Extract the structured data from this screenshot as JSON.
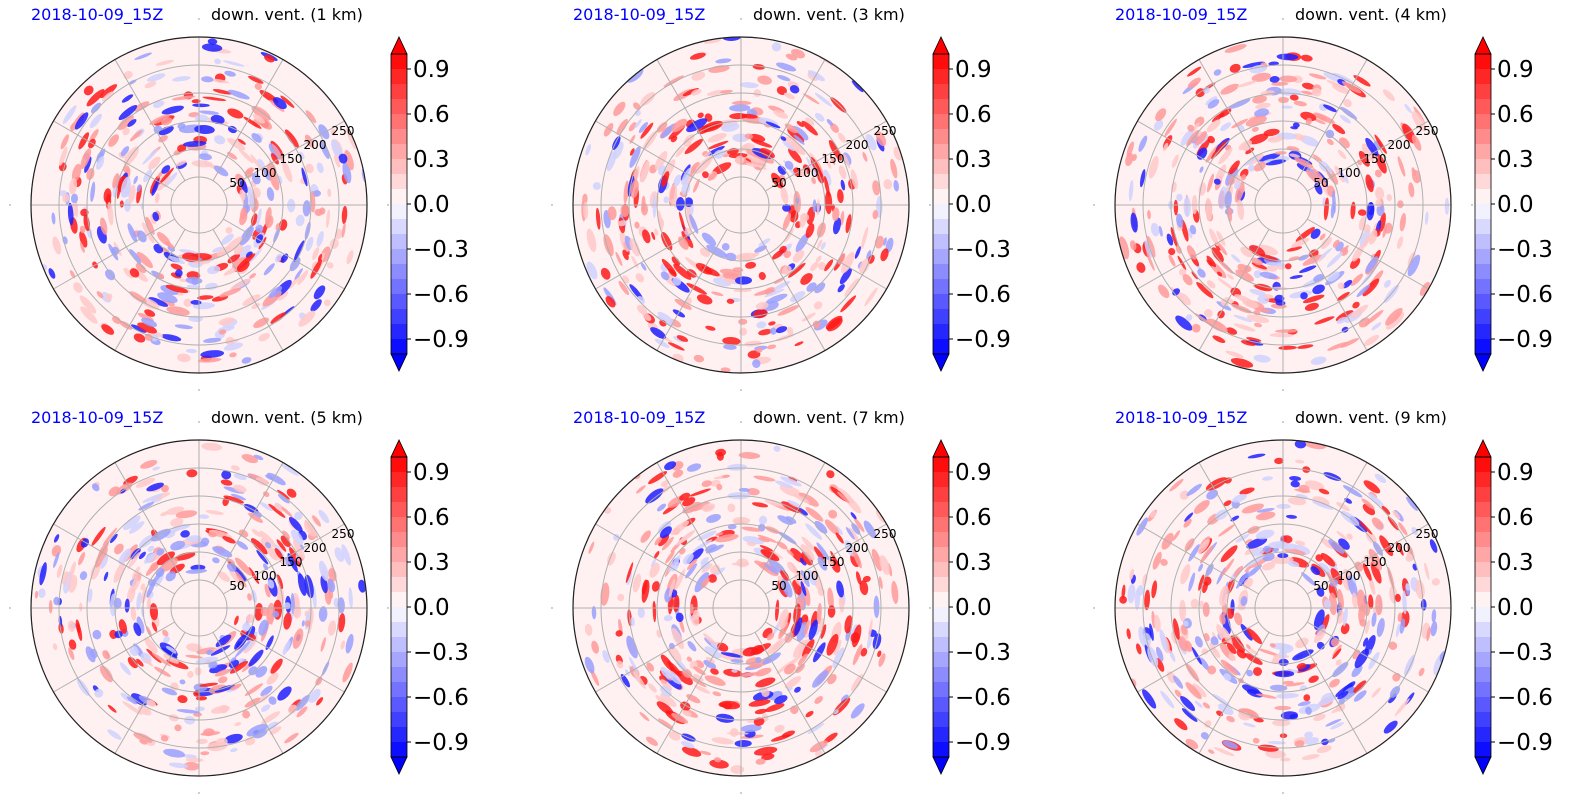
{
  "chart_data": [
    {
      "type": "heatmap",
      "projection": "polar",
      "left_label": "2018-10-09_15Z",
      "right_label": "down. vent. (1 km)",
      "radial_ticks": [
        "50",
        "100",
        "150",
        "200",
        "250"
      ],
      "colorbar_ticks": [
        "0.9",
        "0.6",
        "0.3",
        "0.0",
        "−0.3",
        "−0.6",
        "−0.9"
      ],
      "colorbar_range": [
        -1.0,
        1.0
      ],
      "colormap": {
        "negative": "#0000ff",
        "zero": "#ffffff",
        "positive": "#ff0000"
      }
    },
    {
      "type": "heatmap",
      "projection": "polar",
      "left_label": "2018-10-09_15Z",
      "right_label": "down. vent. (3 km)",
      "radial_ticks": [
        "50",
        "100",
        "150",
        "200",
        "250"
      ],
      "colorbar_ticks": [
        "0.9",
        "0.6",
        "0.3",
        "0.0",
        "−0.3",
        "−0.6",
        "−0.9"
      ],
      "colorbar_range": [
        -1.0,
        1.0
      ],
      "colormap": {
        "negative": "#0000ff",
        "zero": "#ffffff",
        "positive": "#ff0000"
      }
    },
    {
      "type": "heatmap",
      "projection": "polar",
      "left_label": "2018-10-09_15Z",
      "right_label": "down. vent. (4 km)",
      "radial_ticks": [
        "50",
        "100",
        "150",
        "200",
        "250"
      ],
      "colorbar_ticks": [
        "0.9",
        "0.6",
        "0.3",
        "0.0",
        "−0.3",
        "−0.6",
        "−0.9"
      ],
      "colorbar_range": [
        -1.0,
        1.0
      ],
      "colormap": {
        "negative": "#0000ff",
        "zero": "#ffffff",
        "positive": "#ff0000"
      }
    },
    {
      "type": "heatmap",
      "projection": "polar",
      "left_label": "2018-10-09_15Z",
      "right_label": "down. vent. (5 km)",
      "radial_ticks": [
        "50",
        "100",
        "150",
        "200",
        "250"
      ],
      "colorbar_ticks": [
        "0.9",
        "0.6",
        "0.3",
        "0.0",
        "−0.3",
        "−0.6",
        "−0.9"
      ],
      "colorbar_range": [
        -1.0,
        1.0
      ],
      "colormap": {
        "negative": "#0000ff",
        "zero": "#ffffff",
        "positive": "#ff0000"
      }
    },
    {
      "type": "heatmap",
      "projection": "polar",
      "left_label": "2018-10-09_15Z",
      "right_label": "down. vent. (7 km)",
      "radial_ticks": [
        "50",
        "100",
        "150",
        "200",
        "250"
      ],
      "colorbar_ticks": [
        "0.9",
        "0.6",
        "0.3",
        "0.0",
        "−0.3",
        "−0.6",
        "−0.9"
      ],
      "colorbar_range": [
        -1.0,
        1.0
      ],
      "colormap": {
        "negative": "#0000ff",
        "zero": "#ffffff",
        "positive": "#ff0000"
      }
    },
    {
      "type": "heatmap",
      "projection": "polar",
      "left_label": "2018-10-09_15Z",
      "right_label": "down. vent. (9 km)",
      "radial_ticks": [
        "50",
        "100",
        "150",
        "200",
        "250"
      ],
      "colorbar_ticks": [
        "0.9",
        "0.6",
        "0.3",
        "0.0",
        "−0.3",
        "−0.6",
        "−0.9"
      ],
      "colorbar_range": [
        -1.0,
        1.0
      ],
      "colormap": {
        "negative": "#0000ff",
        "zero": "#ffffff",
        "positive": "#ff0000"
      }
    }
  ]
}
